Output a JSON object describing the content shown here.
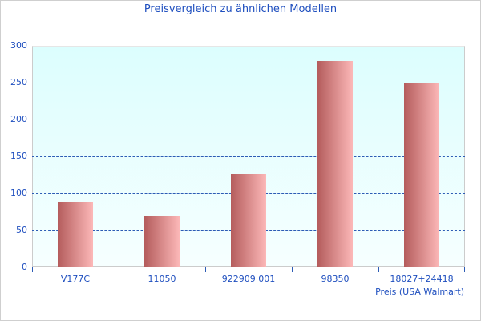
{
  "chart_data": {
    "type": "bar",
    "title": "Preisvergleich zu ähnlichen Modellen",
    "xlabel": "Preis (USA Walmart)",
    "ylabel": "",
    "categories": [
      "V177C",
      "11050",
      "922909 001",
      "98350",
      "18027+24418"
    ],
    "values": [
      88,
      70,
      126,
      279,
      250
    ],
    "ylim": [
      0,
      300
    ],
    "yticks": [
      "0",
      "50",
      "100",
      "150",
      "200",
      "250",
      "300"
    ],
    "grid": true,
    "legend": null,
    "colors": {
      "bar_dark": "#b45c5c",
      "bar_light": "#fcb8b8",
      "text": "#1f4fbf",
      "grid": "#2d5cb5",
      "plot_bg_top": "#dcfefe"
    }
  }
}
